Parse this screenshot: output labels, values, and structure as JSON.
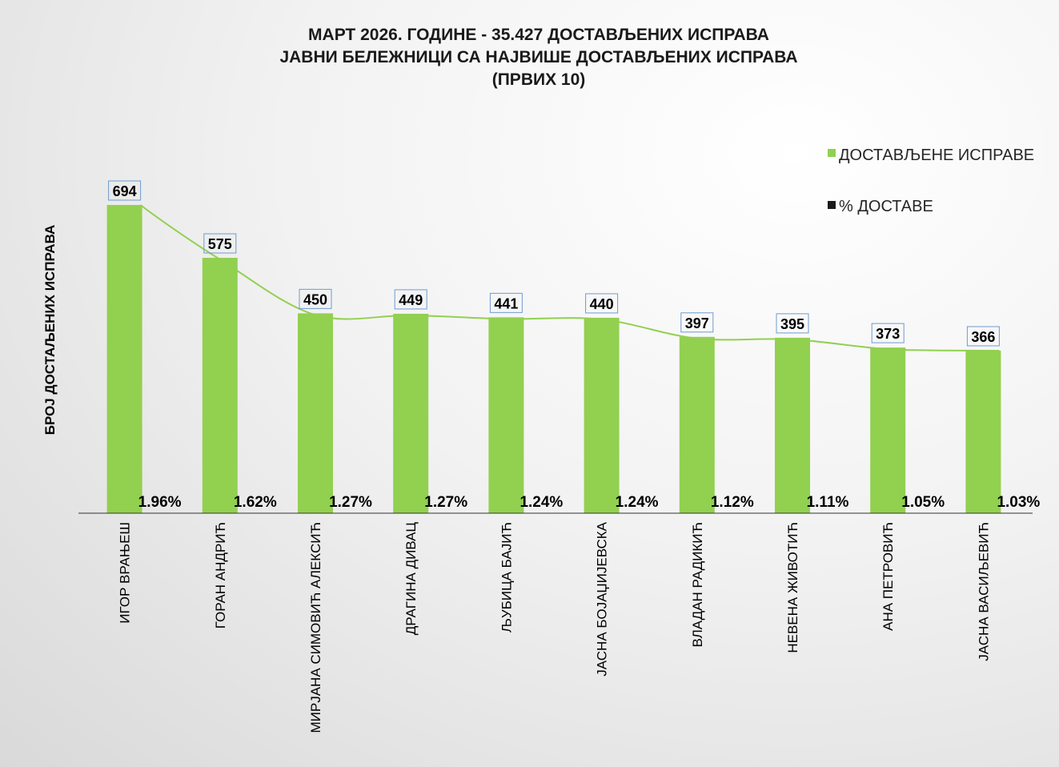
{
  "chart_data": {
    "type": "bar",
    "title_lines": [
      "МАРТ 2026. ГОДИНЕ - 35.427  ДОСТАВЉЕНИХ  ИСПРАВА",
      "ЈАВНИ БЕЛЕЖНИЦИ СА НАЈВИШЕ ДОСТАВЉЕНИХ  ИСПРАВА",
      "(ПРВИХ 10)"
    ],
    "ylabel": "БРОЈ ДОСТАЉЕНИХ ИСПРАВА",
    "xlabel": "",
    "ylim": [
      0,
      700
    ],
    "grid": false,
    "legend_position": "top-right",
    "categories": [
      "ИГОР ВРАЊЕШ",
      "ГОРАН АНДРИЋ",
      "МИРЈАНА СИМОВИЋ АЛЕКСИЋ",
      "ДРАГИНА ДИВАЦ",
      "ЉУБИЦА БАЈИЋ",
      "ЈАСНА БОЈАЏИЈЕВСКА",
      "ВЛАДАН РАДИКИЋ",
      "НЕВЕНА ЖИВОТИЋ",
      "АНА ПЕТРОВИЋ",
      "ЈАСНА ВАСИЉЕВИЋ"
    ],
    "series": [
      {
        "name": "ДОСТАВЉЕНЕ  ИСПРАВЕ",
        "color": "#92d050",
        "values": [
          694,
          575,
          450,
          449,
          441,
          440,
          397,
          395,
          373,
          366
        ],
        "labels": [
          "694",
          "575",
          "450",
          "449",
          "441",
          "440",
          "397",
          "395",
          "373",
          "366"
        ]
      },
      {
        "name": "% ДОСТАВЕ",
        "color": "#1a1a1a",
        "values": [
          1.96,
          1.62,
          1.27,
          1.27,
          1.24,
          1.24,
          1.12,
          1.11,
          1.05,
          1.03
        ],
        "labels": [
          "1.96%",
          "1.62%",
          "1.27%",
          "1.27%",
          "1.24%",
          "1.24%",
          "1.12%",
          "1.11%",
          "1.05%",
          "1.03%"
        ]
      }
    ],
    "trendline": {
      "type": "smooth",
      "color": "#92d050"
    }
  }
}
